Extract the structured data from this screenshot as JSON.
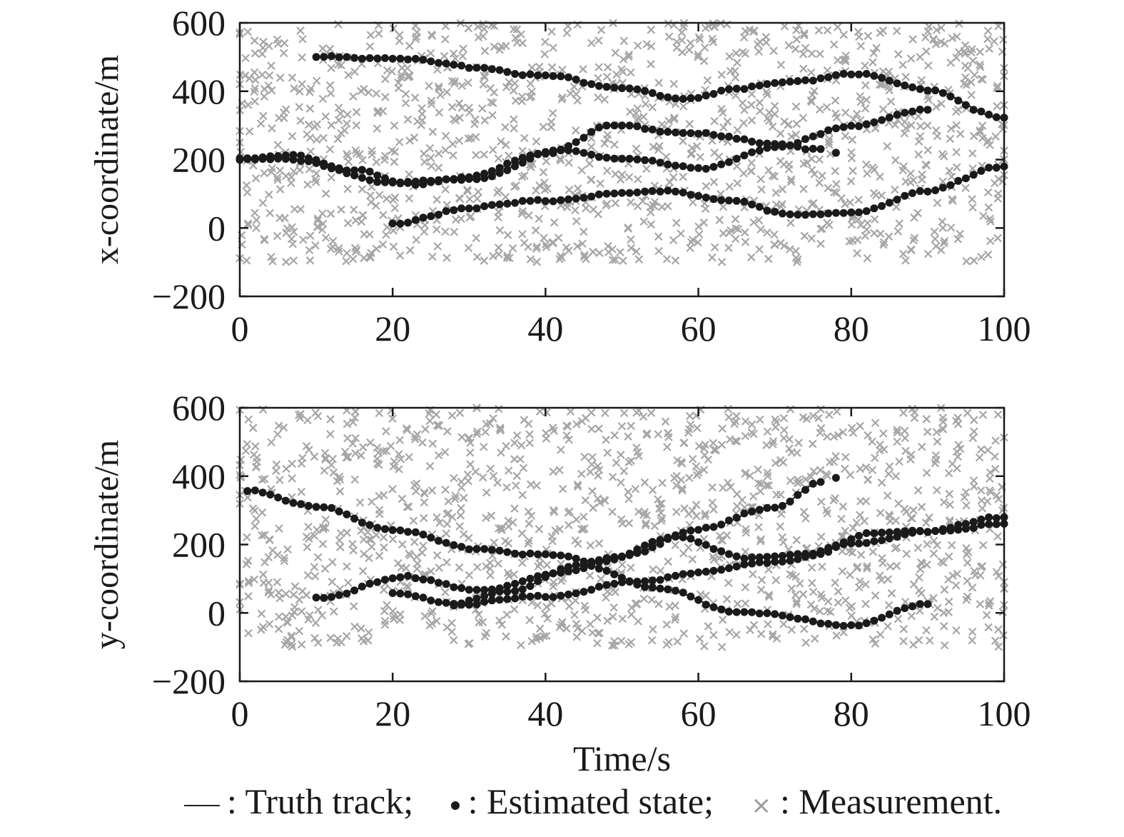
{
  "chart_data": [
    {
      "type": "scatter",
      "ylabel": "x-coordinate/m",
      "xlabel": "",
      "xlim": [
        0,
        100
      ],
      "ylim": [
        -200,
        600
      ],
      "xticks": [
        "0",
        "20",
        "40",
        "60",
        "80",
        "100"
      ],
      "yticks": [
        "600",
        "400",
        "200",
        "0",
        "−200"
      ],
      "grid": false,
      "measurements_per_second": 12,
      "measurement_range": [
        -100,
        600
      ],
      "tracks": [
        {
          "start": 10,
          "end": 100,
          "pts": [
            [
              10,
              500
            ],
            [
              20,
              498
            ],
            [
              30,
              472
            ],
            [
              40,
              445
            ],
            [
              50,
              410
            ],
            [
              58,
              375
            ],
            [
              65,
              408
            ],
            [
              72,
              425
            ],
            [
              80,
              452
            ],
            [
              90,
              405
            ],
            [
              100,
              320
            ]
          ]
        },
        {
          "start": 0,
          "end": 76,
          "pts": [
            [
              0,
              200
            ],
            [
              7,
              212
            ],
            [
              15,
              170
            ],
            [
              22,
              128
            ],
            [
              30,
              150
            ],
            [
              40,
              220
            ],
            [
              49,
              300
            ],
            [
              58,
              280
            ],
            [
              70,
              248
            ],
            [
              76,
              228
            ]
          ]
        },
        {
          "start": 0,
          "end": 90,
          "pts": [
            [
              0,
              200
            ],
            [
              5,
              205
            ],
            [
              20,
              135
            ],
            [
              30,
              140
            ],
            [
              42,
              226
            ],
            [
              50,
              205
            ],
            [
              60,
              175
            ],
            [
              70,
              235
            ],
            [
              80,
              300
            ],
            [
              90,
              345
            ]
          ]
        },
        {
          "start": 20,
          "end": 100,
          "pts": [
            [
              20,
              10
            ],
            [
              30,
              60
            ],
            [
              40,
              80
            ],
            [
              50,
              100
            ],
            [
              56,
              110
            ],
            [
              64,
              80
            ],
            [
              72,
              42
            ],
            [
              80,
              42
            ],
            [
              90,
              110
            ],
            [
              100,
              180
            ]
          ]
        }
      ],
      "isolated_estimates": [
        [
          78,
          220
        ]
      ]
    },
    {
      "type": "scatter",
      "ylabel": "y-coordinate/m",
      "xlabel": "Time/s",
      "xlim": [
        0,
        100
      ],
      "ylim": [
        -200,
        600
      ],
      "xticks": [
        "0",
        "20",
        "40",
        "60",
        "80",
        "100"
      ],
      "yticks": [
        "600",
        "400",
        "200",
        "0",
        "−200"
      ],
      "grid": false,
      "measurements_per_second": 12,
      "measurement_range": [
        -100,
        600
      ],
      "tracks": [
        {
          "start": 1,
          "end": 100,
          "pts": [
            [
              1,
              360
            ],
            [
              10,
              310
            ],
            [
              20,
              245
            ],
            [
              30,
              190
            ],
            [
              40,
              170
            ],
            [
              47,
              150
            ],
            [
              57,
              220
            ],
            [
              67,
              160
            ],
            [
              75,
              170
            ],
            [
              82,
              230
            ],
            [
              90,
              240
            ],
            [
              100,
              258
            ]
          ]
        },
        {
          "start": 10,
          "end": 76,
          "pts": [
            [
              10,
              45
            ],
            [
              22,
              105
            ],
            [
              32,
              65
            ],
            [
              42,
              120
            ],
            [
              50,
              165
            ],
            [
              60,
              245
            ],
            [
              70,
              310
            ],
            [
              76,
              380
            ]
          ]
        },
        {
          "start": 20,
          "end": 90,
          "pts": [
            [
              20,
              60
            ],
            [
              28,
              25
            ],
            [
              35,
              65
            ],
            [
              45,
              140
            ],
            [
              55,
              70
            ],
            [
              65,
              5
            ],
            [
              80,
              -35
            ],
            [
              90,
              25
            ]
          ]
        },
        {
          "start": 28,
          "end": 100,
          "pts": [
            [
              28,
              25
            ],
            [
              40,
              48
            ],
            [
              52,
              90
            ],
            [
              60,
              120
            ],
            [
              70,
              150
            ],
            [
              80,
              200
            ],
            [
              90,
              240
            ],
            [
              100,
              280
            ]
          ]
        }
      ],
      "isolated_estimates": [
        [
          78,
          395
        ]
      ]
    }
  ],
  "legend": {
    "truth_label": ": Truth track;",
    "estimate_label": ": Estimated state;",
    "measurement_label": ": Measurement.",
    "measurement_symbol": "×"
  },
  "colors": {
    "measurement": "#a6a6a6",
    "track": "#1a1a1a",
    "axis": "#1a1a1a"
  }
}
